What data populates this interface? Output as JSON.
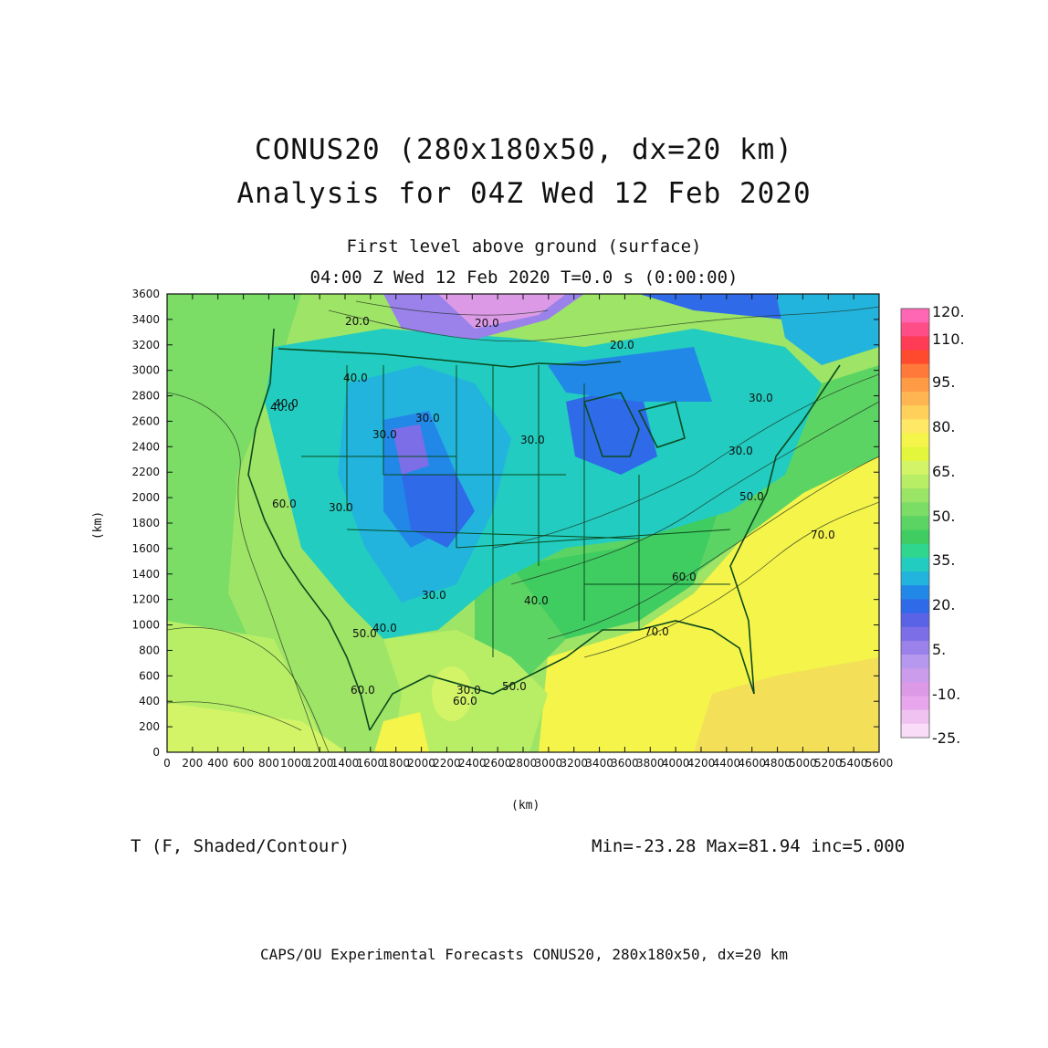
{
  "title": {
    "line1": "CONUS20 (280x180x50, dx=20 km)",
    "line2": "Analysis for 04Z Wed 12 Feb 2020"
  },
  "subtitle": {
    "line1": "First level above ground (surface)",
    "line2": "04:00 Z Wed 12 Feb 2020    T=0.0 s (0:00:00)"
  },
  "axes": {
    "x_label": "(km)",
    "y_label": "(km)",
    "x_ticks": [
      "0",
      "200",
      "400",
      "600",
      "800",
      "1000",
      "1200",
      "1400",
      "1600",
      "1800",
      "2000",
      "2200",
      "2400",
      "2600",
      "2800",
      "3000",
      "3200",
      "3400",
      "3600",
      "3800",
      "4000",
      "4200",
      "4400",
      "4600",
      "4800",
      "5000",
      "5200",
      "5400",
      "5600"
    ],
    "y_ticks": [
      "0",
      "200",
      "400",
      "600",
      "800",
      "1000",
      "1200",
      "1400",
      "1600",
      "1800",
      "2000",
      "2200",
      "2400",
      "2600",
      "2800",
      "3000",
      "3200",
      "3400",
      "3600"
    ]
  },
  "colorbar": {
    "labels": [
      "120.",
      "110.",
      "95.",
      "80.",
      "65.",
      "50.",
      "35.",
      "20.",
      "5.",
      "-10.",
      "-25."
    ],
    "colors": [
      "#ff66b3",
      "#ff4d88",
      "#ff3b55",
      "#ff4a2e",
      "#ff7a3a",
      "#ff9a45",
      "#ffb652",
      "#ffd05a",
      "#ffe865",
      "#f4f44a",
      "#e3f63c",
      "#d2f466",
      "#b8ee66",
      "#9ae466",
      "#7bdc66",
      "#5cd464",
      "#3fcc60",
      "#2ed68e",
      "#22ccc0",
      "#22b4dc",
      "#2288e8",
      "#2f6ae8",
      "#5a62e6",
      "#7c6ee6",
      "#9a82ea",
      "#b698ee",
      "#cc9cec",
      "#dc9ae6",
      "#e8a6ec",
      "#f0c2f2",
      "#f8dcf8"
    ]
  },
  "map_contour_labels": [
    "20.0",
    "20.0",
    "20.0",
    "30.0",
    "40.0",
    "40.0",
    "30.0",
    "30.0",
    "30.0",
    "30.0",
    "30.0",
    "30.0",
    "40.0",
    "40.0",
    "50.0",
    "60.0",
    "50.0",
    "60.0",
    "70.0",
    "70.0",
    "60.0",
    "50.0",
    "60.0",
    "40.0",
    "30.0"
  ],
  "footer": {
    "variable": "T (F, Shaded/Contour)",
    "stats": "Min=-23.28 Max=81.94 inc=5.000",
    "credit": "CAPS/OU Experimental Forecasts  CONUS20, 280x180x50, dx=20 km"
  }
}
